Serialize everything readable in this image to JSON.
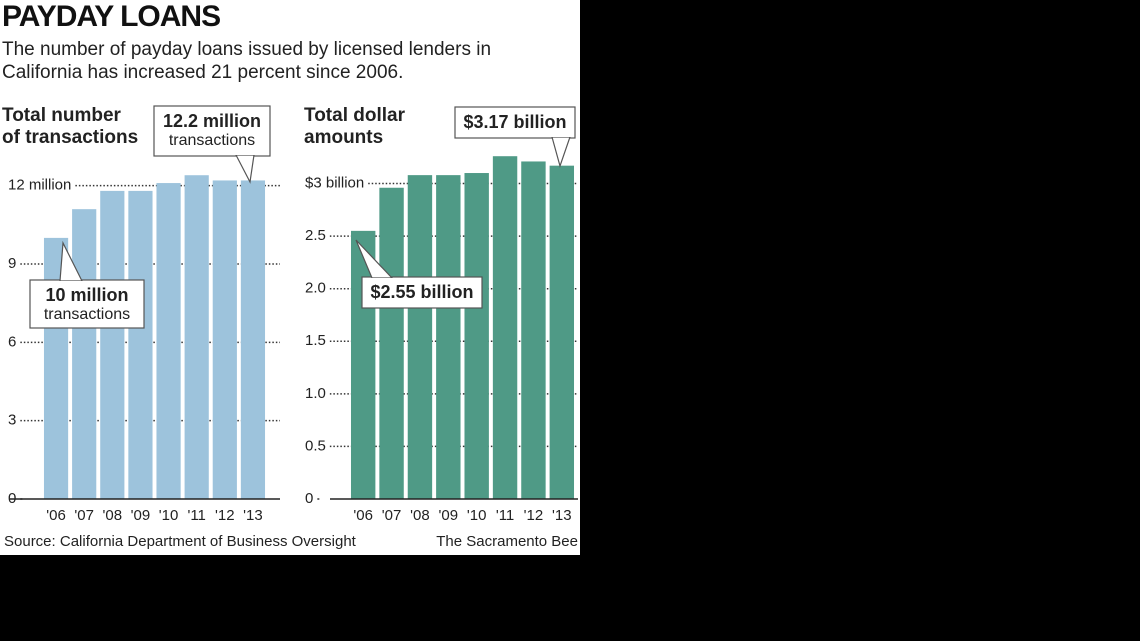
{
  "header": {
    "title": "PAYDAY LOANS",
    "subtitle": "The number of payday loans issued by licensed lenders in California has increased 21 percent since 2006."
  },
  "footer": {
    "source": "Source: California Department of Business Oversight",
    "credit": "The Sacramento Bee"
  },
  "chart_data": [
    {
      "type": "bar",
      "title_lines": [
        "Total number",
        "of transactions"
      ],
      "categories": [
        "'06",
        "'07",
        "'08",
        "'09",
        "'10",
        "'11",
        "'12",
        "'13"
      ],
      "values": [
        10,
        11.1,
        11.8,
        11.8,
        12.1,
        12.4,
        12.2,
        12.2
      ],
      "color": "#9dc3dc",
      "ylim": [
        0,
        12.6
      ],
      "yticks": [
        0,
        3,
        6,
        9,
        {
          "value": 12,
          "label": "12 million"
        }
      ],
      "grid": true,
      "annotations": [
        {
          "lines": [
            "12.2 million",
            "transactions"
          ]
        },
        {
          "lines": [
            "10 million",
            "transactions"
          ]
        }
      ]
    },
    {
      "type": "bar",
      "title_lines": [
        "Total dollar",
        "amounts"
      ],
      "categories": [
        "'06",
        "'07",
        "'08",
        "'09",
        "'10",
        "'11",
        "'12",
        "'13"
      ],
      "values": [
        2.55,
        2.96,
        3.08,
        3.08,
        3.1,
        3.26,
        3.21,
        3.17
      ],
      "color": "#4f9a86",
      "ylim": [
        0,
        3.3
      ],
      "yticks": [
        0,
        0.5,
        {
          "value": 1,
          "label": "1.0"
        },
        1.5,
        {
          "value": 2,
          "label": "2.0"
        },
        2.5,
        {
          "value": 3,
          "label": "$3 billion"
        }
      ],
      "grid": true,
      "annotations": [
        {
          "lines": [
            "$3.17 billion"
          ]
        },
        {
          "lines": [
            "$2.55 billion"
          ]
        }
      ]
    }
  ]
}
